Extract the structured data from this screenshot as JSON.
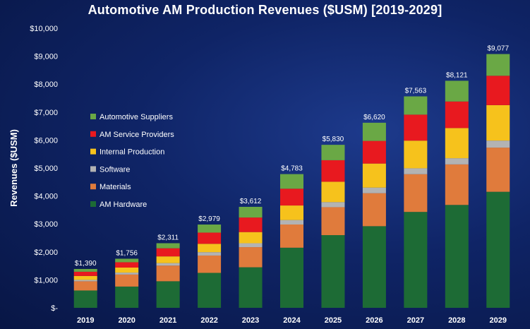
{
  "chart_data": {
    "type": "bar",
    "stacked": true,
    "title": "Automotive AM Production Revenues ($USM) [2019-2029]",
    "xlabel": "",
    "ylabel": "Revenues ($USM)",
    "ylim": [
      0,
      10000
    ],
    "yticks": [
      0,
      1000,
      2000,
      3000,
      4000,
      5000,
      6000,
      7000,
      8000,
      9000,
      10000
    ],
    "ytick_labels": [
      "$-",
      "$1,000",
      "$2,000",
      "$3,000",
      "$4,000",
      "$5,000",
      "$6,000",
      "$7,000",
      "$8,000",
      "$9,000",
      "$10,000"
    ],
    "grid": false,
    "legend_position": "left",
    "categories": [
      "2019",
      "2020",
      "2021",
      "2022",
      "2023",
      "2024",
      "2025",
      "2026",
      "2027",
      "2028",
      "2029"
    ],
    "totals": [
      1390,
      1756,
      2311,
      2979,
      3612,
      4783,
      5830,
      6620,
      7563,
      8121,
      9077
    ],
    "total_labels": [
      "$1,390",
      "$1,756",
      "$2,311",
      "$2,979",
      "$3,612",
      "$4,783",
      "$5,830",
      "$6,620",
      "$7,563",
      "$8,121",
      "$9,077"
    ],
    "series": [
      {
        "name": "AM Hardware",
        "color": "#1d6b35",
        "values": [
          620,
          760,
          950,
          1250,
          1450,
          2150,
          2600,
          2920,
          3430,
          3680,
          4150
        ]
      },
      {
        "name": "Materials",
        "color": "#e07b3c",
        "values": [
          330,
          430,
          560,
          620,
          720,
          830,
          1000,
          1180,
          1350,
          1450,
          1580
        ]
      },
      {
        "name": "Software",
        "color": "#b3b3b3",
        "values": [
          50,
          70,
          90,
          120,
          140,
          160,
          180,
          200,
          210,
          220,
          250
        ]
      },
      {
        "name": "Internal Production",
        "color": "#f6c21c",
        "values": [
          140,
          180,
          240,
          300,
          400,
          520,
          730,
          860,
          990,
          1080,
          1270
        ]
      },
      {
        "name": "AM Service Providers",
        "color": "#e8191f",
        "values": [
          150,
          190,
          290,
          400,
          520,
          600,
          770,
          810,
          930,
          950,
          1050
        ]
      },
      {
        "name": "Automotive Suppliers",
        "color": "#6aa845",
        "values": [
          100,
          126,
          181,
          289,
          382,
          523,
          550,
          650,
          653,
          741,
          777
        ]
      }
    ]
  }
}
